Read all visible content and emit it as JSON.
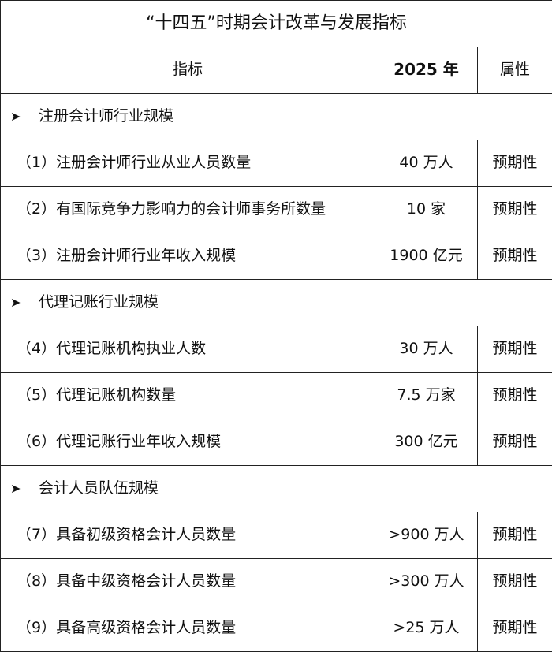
{
  "title": "“十四五”时期会计改革与发展指标",
  "header": {
    "indicator": "指标",
    "year": "2025 年",
    "attribute": "属性"
  },
  "sections": [
    {
      "label": "注册会计师行业规模",
      "rows": [
        {
          "name": "（1）注册会计师行业从业人员数量",
          "value": "40 万人",
          "attr": "预期性"
        },
        {
          "name": "（2）有国际竞争力影响力的会计师事务所数量",
          "value": "10 家",
          "attr": "预期性"
        },
        {
          "name": "（3）注册会计师行业年收入规模",
          "value": "1900 亿元",
          "attr": "预期性"
        }
      ]
    },
    {
      "label": "代理记账行业规模",
      "rows": [
        {
          "name": "（4）代理记账机构执业人数",
          "value": "30 万人",
          "attr": "预期性"
        },
        {
          "name": "（5）代理记账机构数量",
          "value": "7.5 万家",
          "attr": "预期性"
        },
        {
          "name": "（6）代理记账行业年收入规模",
          "value": "300 亿元",
          "attr": "预期性"
        }
      ]
    },
    {
      "label": "会计人员队伍规模",
      "rows": [
        {
          "name": "（7）具备初级资格会计人员数量",
          "value": ">900 万人",
          "attr": "预期性"
        },
        {
          "name": "（8）具备中级资格会计人员数量",
          "value": ">300 万人",
          "attr": "预期性"
        },
        {
          "name": "（9）具备高级资格会计人员数量",
          "value": ">25 万人",
          "attr": "预期性"
        }
      ]
    }
  ],
  "bullet_icon": "arrowhead-bullet-icon"
}
